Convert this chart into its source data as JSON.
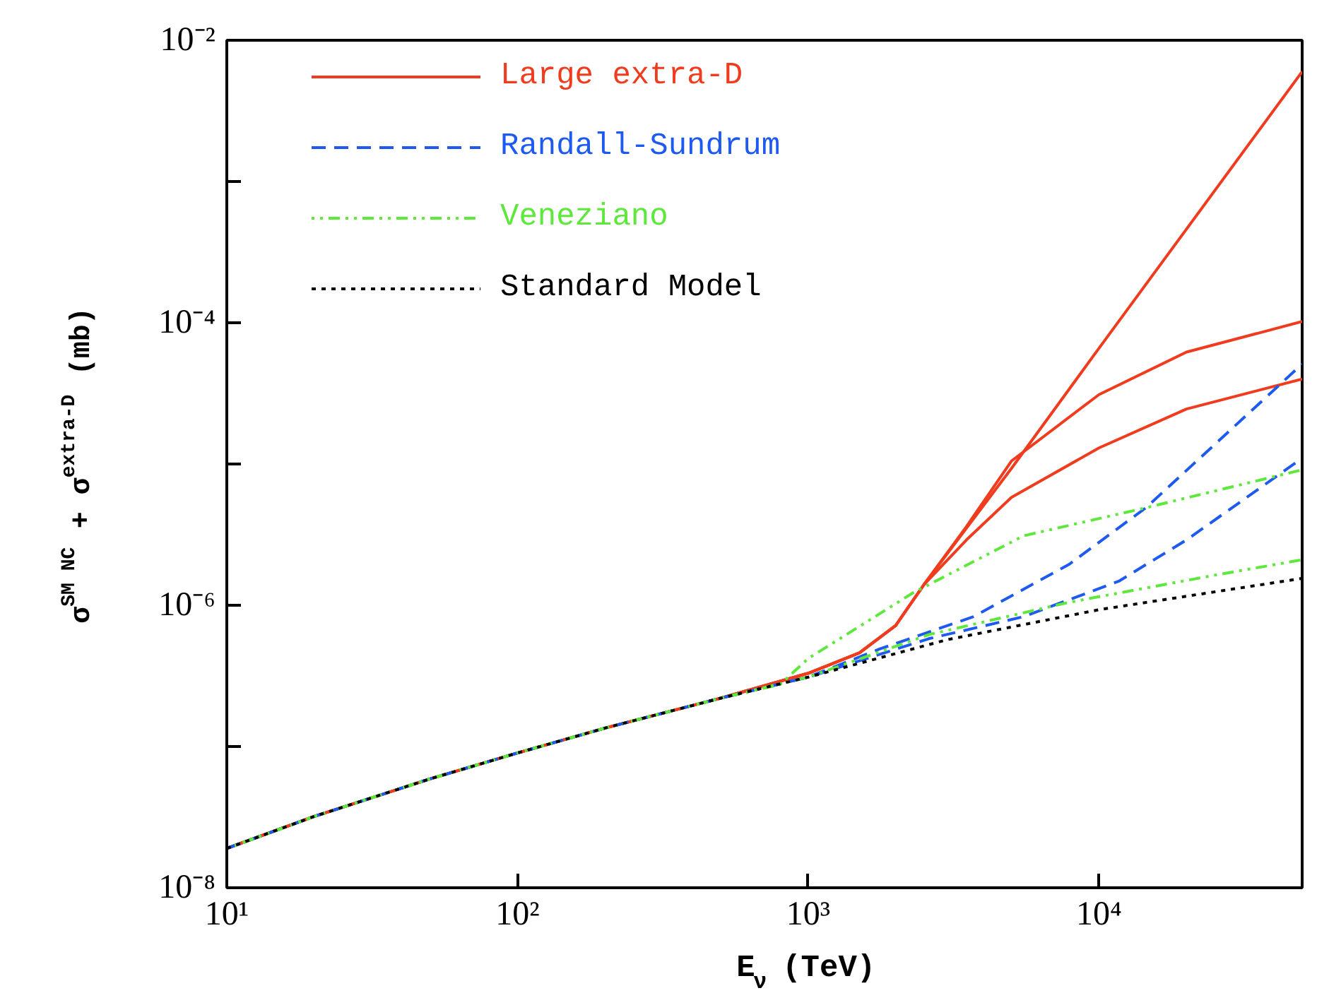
{
  "chart_data": {
    "type": "line",
    "log": "xy",
    "xlabel": "E$_{ν}$ (TeV)",
    "ylabel": "σ$^{SM NC}$ + σ$^{extra-D}$ (mb)",
    "xlim": [
      10,
      50000
    ],
    "ylim": [
      1e-08,
      0.01
    ],
    "xticks": [
      {
        "value": 10,
        "label": "10¹"
      },
      {
        "value": 100,
        "label": "10²"
      },
      {
        "value": 1000,
        "label": "10³"
      },
      {
        "value": 10000,
        "label": "10⁴"
      }
    ],
    "yticks": [
      {
        "value": 1e-08,
        "label": "10⁻⁸"
      },
      {
        "value": 1e-07,
        "label": null
      },
      {
        "value": 1e-06,
        "label": "10⁻⁶"
      },
      {
        "value": 1e-05,
        "label": null
      },
      {
        "value": 0.0001,
        "label": "10⁻⁴"
      },
      {
        "value": 0.001,
        "label": null
      },
      {
        "value": 0.01,
        "label": "10⁻²"
      }
    ],
    "grid": false,
    "legend": "top left",
    "series": [
      {
        "name": "Large extra-D",
        "color": "#f03c1e",
        "line_style": "solid",
        "x": [
          10,
          20,
          50,
          100,
          200,
          500,
          1000,
          1500,
          2000,
          2500,
          5000,
          10000,
          50000
        ],
        "values": [
          1.9e-08,
          3.2e-08,
          5.9e-08,
          9e-08,
          1.35e-07,
          2.2e-07,
          3.3e-07,
          4.6e-07,
          7.2e-07,
          1.4e-06,
          9.3e-06,
          6.6e-05,
          0.006
        ]
      },
      {
        "color": "#f03c1e",
        "line_style": "solid",
        "x": [
          10,
          20,
          50,
          100,
          200,
          500,
          1000,
          1500,
          2000,
          2500,
          3500,
          5000,
          10000,
          20000,
          50000
        ],
        "values": [
          1.9e-08,
          3.2e-08,
          5.9e-08,
          9e-08,
          1.35e-07,
          2.2e-07,
          3.3e-07,
          4.6e-07,
          7.2e-07,
          1.4e-06,
          3.6e-06,
          1.05e-05,
          3.1e-05,
          6.2e-05,
          0.000102
        ]
      },
      {
        "color": "#f03c1e",
        "line_style": "solid",
        "x": [
          10,
          20,
          50,
          100,
          200,
          500,
          1000,
          1500,
          2000,
          2500,
          3500,
          5000,
          10000,
          20000,
          50000
        ],
        "values": [
          1.9e-08,
          3.2e-08,
          5.9e-08,
          9e-08,
          1.35e-07,
          2.2e-07,
          3.3e-07,
          4.6e-07,
          7.2e-07,
          1.4e-06,
          2.9e-06,
          5.8e-06,
          1.3e-05,
          2.45e-05,
          4e-05
        ]
      },
      {
        "name": "Randall-Sundrum",
        "color": "#1e5af0",
        "line_style": "dashed",
        "x": [
          10,
          20,
          50,
          100,
          200,
          500,
          1000,
          1760,
          3700,
          7900,
          14500,
          50000
        ],
        "values": [
          1.9e-08,
          3.2e-08,
          5.9e-08,
          9e-08,
          1.35e-07,
          2.2e-07,
          3.1e-07,
          4.9e-07,
          8.3e-07,
          1.95e-06,
          4.9e-06,
          5.1e-05
        ]
      },
      {
        "color": "#1e5af0",
        "line_style": "dashed",
        "x": [
          10,
          20,
          50,
          100,
          200,
          500,
          1000,
          2600,
          5500,
          11700,
          20000,
          50000
        ],
        "values": [
          1.9e-08,
          3.2e-08,
          5.9e-08,
          9e-08,
          1.35e-07,
          2.2e-07,
          3.1e-07,
          5.8e-07,
          8.3e-07,
          1.48e-06,
          2.9e-06,
          1.1e-05
        ]
      },
      {
        "name": "Veneziano",
        "color": "#5ee83c",
        "line_style": "dashdot",
        "x": [
          10,
          20,
          50,
          100,
          200,
          500,
          800,
          1000,
          2300,
          5500,
          14500,
          50000
        ],
        "values": [
          1.9e-08,
          3.2e-08,
          5.9e-08,
          9e-08,
          1.35e-07,
          2.2e-07,
          2.75e-07,
          4.2e-07,
          1.23e-06,
          3.1e-06,
          4.9e-06,
          9.1e-06
        ]
      },
      {
        "color": "#5ee83c",
        "line_style": "dashdot",
        "x": [
          10,
          20,
          50,
          100,
          200,
          500,
          1000,
          2600,
          7900,
          24500,
          50000
        ],
        "values": [
          1.9e-08,
          3.2e-08,
          5.9e-08,
          9e-08,
          1.35e-07,
          2.2e-07,
          3.1e-07,
          6.2e-07,
          1.05e-06,
          1.62e-06,
          2.1e-06
        ]
      },
      {
        "name": "Standard Model",
        "color": "#000000",
        "line_style": "dotted",
        "x": [
          10,
          20,
          50,
          100,
          200,
          500,
          1000,
          3000,
          10000,
          50000
        ],
        "values": [
          1.9e-08,
          3.2e-08,
          5.9e-08,
          9e-08,
          1.35e-07,
          2.2e-07,
          3.1e-07,
          5.7e-07,
          9.3e-07,
          1.55e-06
        ]
      }
    ]
  }
}
